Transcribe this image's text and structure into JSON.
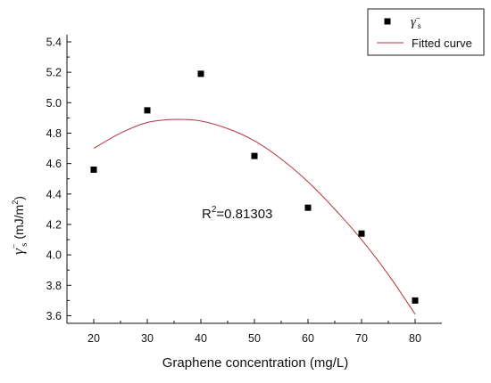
{
  "chart_data": {
    "type": "scatter",
    "xlabel": "Graphene concentration (mg/L)",
    "ylabel": {
      "symbol": "γ",
      "superscript": "−",
      "subscript": "s",
      "unit_prefix": "(mJ/m",
      "unit_power": "2",
      "unit_suffix": ")"
    },
    "xlim": [
      15,
      85
    ],
    "ylim": [
      3.55,
      5.4
    ],
    "x_ticks": [
      20,
      30,
      40,
      50,
      60,
      70,
      80
    ],
    "y_ticks": [
      "3.6",
      "3.8",
      "4.0",
      "4.2",
      "4.4",
      "4.6",
      "4.8",
      "5.0",
      "5.2",
      "5.4"
    ],
    "series": [
      {
        "name": "γs−",
        "kind": "scatter",
        "color": "#000000",
        "points": [
          {
            "x": 20,
            "y": 4.56
          },
          {
            "x": 30,
            "y": 4.95
          },
          {
            "x": 40,
            "y": 5.19
          },
          {
            "x": 50,
            "y": 4.65
          },
          {
            "x": 60,
            "y": 4.31
          },
          {
            "x": 70,
            "y": 4.14
          },
          {
            "x": 80,
            "y": 3.7
          }
        ]
      },
      {
        "name": "Fitted curve",
        "kind": "line",
        "color": "#b5343c",
        "points": [
          {
            "x": 20,
            "y": 4.7
          },
          {
            "x": 25,
            "y": 4.8
          },
          {
            "x": 30,
            "y": 4.87
          },
          {
            "x": 35,
            "y": 4.89
          },
          {
            "x": 40,
            "y": 4.88
          },
          {
            "x": 45,
            "y": 4.83
          },
          {
            "x": 50,
            "y": 4.75
          },
          {
            "x": 55,
            "y": 4.63
          },
          {
            "x": 60,
            "y": 4.48
          },
          {
            "x": 65,
            "y": 4.3
          },
          {
            "x": 70,
            "y": 4.1
          },
          {
            "x": 75,
            "y": 3.87
          },
          {
            "x": 80,
            "y": 3.61
          }
        ]
      }
    ],
    "annotation": {
      "prefix": "R",
      "power": "2",
      "value": "=0.81303",
      "at": {
        "x": 50,
        "y": 4.26
      }
    },
    "legend": {
      "placement": "top-right",
      "entries": [
        {
          "symbol": "γ",
          "superscript": "−",
          "subscript": "s",
          "kind": "marker"
        },
        {
          "label": "Fitted curve",
          "kind": "line"
        }
      ]
    },
    "grid": false
  }
}
